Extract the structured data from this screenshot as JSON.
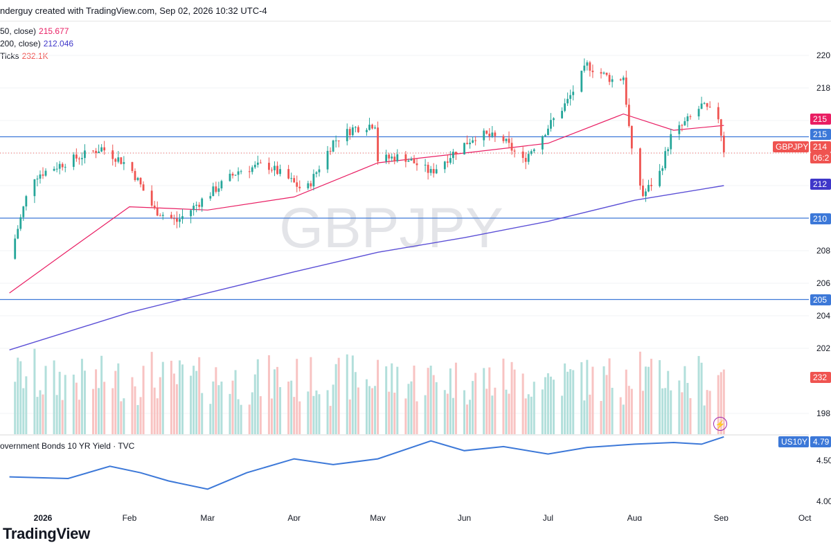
{
  "header": {
    "text": "nderguy created with TradingView.com, Sep 02, 2026 10:32 UTC-4"
  },
  "legend": {
    "ma50_label": "50, close)",
    "ma50_value": "215.677",
    "ma200_label": "200, close)",
    "ma200_value": "212.046",
    "ticks_label": "Ticks",
    "ticks_value": "232.1K"
  },
  "watermark": "GBPJPY",
  "sub_label": "overnment Bonds 10 YR Yield · TVC",
  "brand": "TradingView",
  "colors": {
    "up": "#26a69a",
    "down": "#ef5350",
    "ma50": "#e91e63",
    "ma200": "#5b4fd6",
    "yield": "#3c78d8",
    "hline": "#3c78d8",
    "vol_up": "#b2dfdb",
    "vol_down": "#f8c3c2"
  },
  "axis_labels": {
    "price_ticks": [
      "220",
      "218",
      "216",
      "214",
      "212",
      "210",
      "208",
      "206",
      "204",
      "202",
      "198"
    ],
    "time_ticks": [
      "2026",
      "Feb",
      "Mar",
      "Apr",
      "May",
      "Jun",
      "Jul",
      "Aug",
      "Sep",
      "Oct"
    ],
    "yield_ticks": [
      "4.50",
      "4.00"
    ]
  },
  "badges": [
    {
      "text": "215",
      "color": "#e91e63"
    },
    {
      "text": "215",
      "color": "#3c78d8"
    },
    {
      "text": "GBPJPY",
      "color": "#ef5350"
    },
    {
      "text": "214",
      "color": "#ef5350"
    },
    {
      "text": "06:2",
      "color": "#ef5350"
    },
    {
      "text": "212",
      "color": "#3f37c9"
    },
    {
      "text": "210",
      "color": "#3c78d8"
    },
    {
      "text": "205",
      "color": "#3c78d8"
    },
    {
      "text": "232",
      "color": "#ef5350"
    },
    {
      "text": "US10Y",
      "color": "#3c78d8"
    },
    {
      "text": "4.79",
      "color": "#3c78d8"
    }
  ],
  "chart_data": {
    "type": "candlestick",
    "series_name": "GBPJPY",
    "ylim": [
      196.3,
      221.0
    ],
    "horizontal_lines": [
      215.0,
      210.0,
      205.0
    ],
    "last_price": 214.0,
    "key_points": [
      {
        "date": "2025-12-20",
        "price": 207.5
      },
      {
        "date": "2025-12-28",
        "price": 212.5
      },
      {
        "date": "2026-01-10",
        "price": 213.5
      },
      {
        "date": "2026-01-22",
        "price": 214.3
      },
      {
        "date": "2026-02-01",
        "price": 213.2
      },
      {
        "date": "2026-02-10",
        "price": 210.5
      },
      {
        "date": "2026-02-18",
        "price": 209.8
      },
      {
        "date": "2026-03-01",
        "price": 211.4
      },
      {
        "date": "2026-03-12",
        "price": 212.9
      },
      {
        "date": "2026-03-22",
        "price": 213.3
      },
      {
        "date": "2026-03-30",
        "price": 212.4
      },
      {
        "date": "2026-04-05",
        "price": 211.6
      },
      {
        "date": "2026-04-15",
        "price": 214.7
      },
      {
        "date": "2026-04-22",
        "price": 215.5
      },
      {
        "date": "2026-04-30",
        "price": 215.8
      },
      {
        "date": "2026-05-01",
        "price": 213.6
      },
      {
        "date": "2026-05-10",
        "price": 213.8
      },
      {
        "date": "2026-05-20",
        "price": 212.8
      },
      {
        "date": "2026-05-28",
        "price": 214.0
      },
      {
        "date": "2026-06-06",
        "price": 215.2
      },
      {
        "date": "2026-06-15",
        "price": 214.8
      },
      {
        "date": "2026-06-22",
        "price": 213.5
      },
      {
        "date": "2026-07-01",
        "price": 215.6
      },
      {
        "date": "2026-07-08",
        "price": 217.2
      },
      {
        "date": "2026-07-15",
        "price": 219.4
      },
      {
        "date": "2026-07-25",
        "price": 218.4
      },
      {
        "date": "2026-07-28",
        "price": 218.7
      },
      {
        "date": "2026-07-31",
        "price": 214.0
      },
      {
        "date": "2026-08-04",
        "price": 211.4
      },
      {
        "date": "2026-08-10",
        "price": 212.8
      },
      {
        "date": "2026-08-14",
        "price": 215.0
      },
      {
        "date": "2026-08-20",
        "price": 216.0
      },
      {
        "date": "2026-08-25",
        "price": 216.9
      },
      {
        "date": "2026-08-31",
        "price": 216.2
      },
      {
        "date": "2026-09-02",
        "price": 214.2
      }
    ],
    "ma50": {
      "name": "MA 50",
      "points": [
        {
          "date": "2025-12-20",
          "value": 205.4
        },
        {
          "date": "2026-01-10",
          "value": 208.0
        },
        {
          "date": "2026-02-01",
          "value": 210.7
        },
        {
          "date": "2026-02-15",
          "value": 210.6
        },
        {
          "date": "2026-03-01",
          "value": 210.5
        },
        {
          "date": "2026-04-01",
          "value": 211.3
        },
        {
          "date": "2026-05-01",
          "value": 213.4
        },
        {
          "date": "2026-06-01",
          "value": 214.0
        },
        {
          "date": "2026-07-01",
          "value": 214.6
        },
        {
          "date": "2026-07-28",
          "value": 216.4
        },
        {
          "date": "2026-08-15",
          "value": 215.4
        },
        {
          "date": "2026-09-02",
          "value": 215.7
        }
      ]
    },
    "ma200": {
      "name": "MA 200",
      "points": [
        {
          "date": "2025-12-20",
          "value": 201.9
        },
        {
          "date": "2026-02-01",
          "value": 204.2
        },
        {
          "date": "2026-03-01",
          "value": 205.4
        },
        {
          "date": "2026-04-01",
          "value": 206.7
        },
        {
          "date": "2026-05-01",
          "value": 207.9
        },
        {
          "date": "2026-06-01",
          "value": 208.8
        },
        {
          "date": "2026-07-01",
          "value": 209.8
        },
        {
          "date": "2026-08-01",
          "value": 211.1
        },
        {
          "date": "2026-09-02",
          "value": 212.0
        }
      ]
    },
    "volume": {
      "name": "Ticks",
      "last": 232100
    },
    "us10y": {
      "name": "US10Y",
      "last": 4.79,
      "points": [
        {
          "date": "2025-12-20",
          "value": 4.3
        },
        {
          "date": "2026-01-10",
          "value": 4.28
        },
        {
          "date": "2026-01-25",
          "value": 4.43
        },
        {
          "date": "2026-02-05",
          "value": 4.35
        },
        {
          "date": "2026-02-15",
          "value": 4.25
        },
        {
          "date": "2026-03-01",
          "value": 4.15
        },
        {
          "date": "2026-03-15",
          "value": 4.35
        },
        {
          "date": "2026-04-01",
          "value": 4.52
        },
        {
          "date": "2026-04-15",
          "value": 4.45
        },
        {
          "date": "2026-05-01",
          "value": 4.52
        },
        {
          "date": "2026-05-20",
          "value": 4.74
        },
        {
          "date": "2026-06-01",
          "value": 4.62
        },
        {
          "date": "2026-06-15",
          "value": 4.67
        },
        {
          "date": "2026-07-01",
          "value": 4.58
        },
        {
          "date": "2026-07-15",
          "value": 4.66
        },
        {
          "date": "2026-08-01",
          "value": 4.7
        },
        {
          "date": "2026-08-15",
          "value": 4.72
        },
        {
          "date": "2026-08-25",
          "value": 4.7
        },
        {
          "date": "2026-09-02",
          "value": 4.79
        }
      ]
    }
  }
}
